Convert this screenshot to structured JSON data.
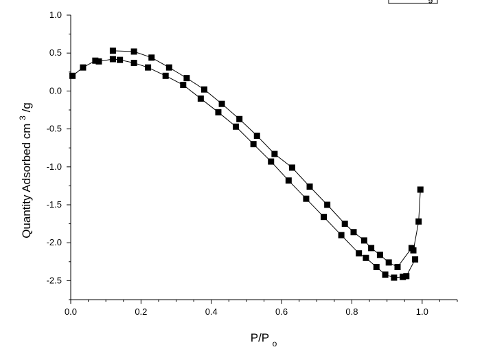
{
  "chart_data": {
    "type": "line",
    "title": "",
    "xlabel": {
      "base": "P/P",
      "subscript": "o"
    },
    "ylabel": {
      "base": "Quantity Adsorbed cm",
      "superscript": "3",
      "suffix": "/g"
    },
    "xlim": [
      0.0,
      1.1
    ],
    "ylim": [
      -2.75,
      1.0
    ],
    "x_ticks": [
      0.0,
      0.2,
      0.4,
      0.6,
      0.8,
      1.0
    ],
    "x_tick_labels": [
      "0.0",
      "0.2",
      "0.4",
      "0.6",
      "0.8",
      "1.0"
    ],
    "y_ticks": [
      1.0,
      0.5,
      0.0,
      -0.5,
      -1.0,
      -1.5,
      -2.0,
      -2.5
    ],
    "y_tick_labels": [
      "1.0",
      "0.5",
      "0.0",
      "-0.5",
      "-1.0",
      "-1.5",
      "-2.0",
      "-2.5"
    ],
    "grid": false,
    "legend": {
      "placement": "top-right",
      "visible_text": "g"
    },
    "series": [
      {
        "marker": "square",
        "color": "#000000",
        "x": [
          0.005,
          0.035,
          0.07,
          0.08,
          0.12,
          0.14,
          0.18,
          0.22,
          0.27,
          0.32,
          0.37,
          0.42,
          0.47,
          0.52,
          0.57,
          0.62,
          0.67,
          0.72,
          0.77,
          0.82,
          0.84,
          0.87,
          0.895,
          0.92,
          0.945,
          0.955,
          0.98
        ],
        "y": [
          0.2,
          0.31,
          0.4,
          0.39,
          0.42,
          0.41,
          0.37,
          0.31,
          0.2,
          0.08,
          -0.1,
          -0.28,
          -0.47,
          -0.7,
          -0.93,
          -1.18,
          -1.42,
          -1.66,
          -1.9,
          -2.14,
          -2.2,
          -2.32,
          -2.42,
          -2.46,
          -2.45,
          -2.44,
          -2.22
        ]
      },
      {
        "marker": "square",
        "color": "#000000",
        "x": [
          0.995,
          0.99,
          0.975,
          0.97,
          0.93,
          0.905,
          0.88,
          0.855,
          0.835,
          0.805,
          0.78,
          0.73,
          0.68,
          0.63,
          0.58,
          0.53,
          0.48,
          0.43,
          0.38,
          0.33,
          0.28,
          0.23,
          0.18,
          0.12
        ],
        "y": [
          -1.3,
          -1.72,
          -2.1,
          -2.07,
          -2.32,
          -2.26,
          -2.16,
          -2.07,
          -1.97,
          -1.86,
          -1.75,
          -1.5,
          -1.26,
          -1.01,
          -0.83,
          -0.59,
          -0.37,
          -0.17,
          0.02,
          0.17,
          0.31,
          0.44,
          0.52,
          0.53
        ]
      }
    ]
  }
}
